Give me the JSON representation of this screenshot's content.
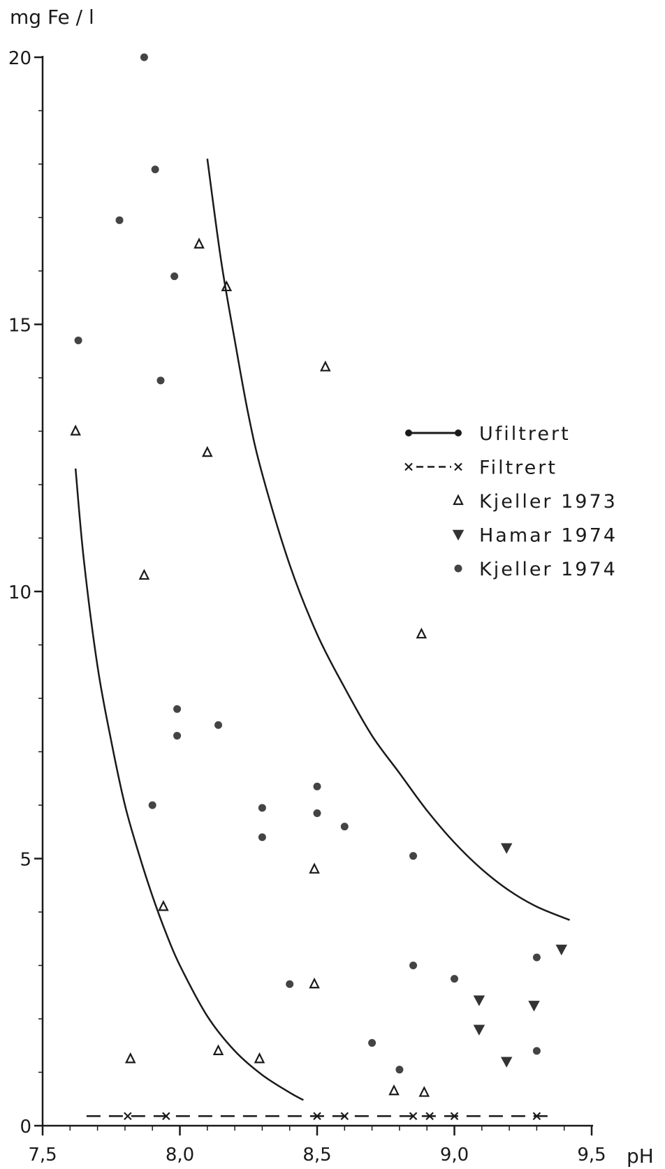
{
  "chart_data": {
    "type": "scatter",
    "title": "",
    "xlabel": "pH",
    "ylabel": "mg Fe / l",
    "xlim": [
      7.5,
      9.5
    ],
    "ylim": [
      0,
      20
    ],
    "x_ticks": [
      "7,5",
      "8,0",
      "8,5",
      "9,0",
      "9,5"
    ],
    "y_ticks": [
      "0",
      "5",
      "10",
      "15",
      "20"
    ],
    "grid": false,
    "legend_position": "right-middle",
    "legend": [
      {
        "label": "Ufiltrert",
        "style": "solid-line-dots"
      },
      {
        "label": "Filtrert",
        "style": "dashed-line-x"
      },
      {
        "label": "Kjeller 1973",
        "marker": "triangle-open"
      },
      {
        "label": "Hamar 1974",
        "marker": "triangle-down-filled"
      },
      {
        "label": "Kjeller 1974",
        "marker": "circle-filled"
      }
    ],
    "series": [
      {
        "name": "Kjeller 1973",
        "marker": "triangle-open",
        "points": [
          [
            7.62,
            13.0
          ],
          [
            7.82,
            1.25
          ],
          [
            7.87,
            10.3
          ],
          [
            7.94,
            4.1
          ],
          [
            8.07,
            16.5
          ],
          [
            8.1,
            12.6
          ],
          [
            8.14,
            1.4
          ],
          [
            8.17,
            15.7
          ],
          [
            8.29,
            1.25
          ],
          [
            8.49,
            4.8
          ],
          [
            8.49,
            2.65
          ],
          [
            8.53,
            14.2
          ],
          [
            8.78,
            0.65
          ],
          [
            8.88,
            9.2
          ],
          [
            8.89,
            0.62
          ]
        ]
      },
      {
        "name": "Hamar 1974",
        "marker": "triangle-down-filled",
        "points": [
          [
            9.09,
            2.35
          ],
          [
            9.09,
            1.8
          ],
          [
            9.19,
            5.2
          ],
          [
            9.19,
            1.2
          ],
          [
            9.29,
            2.25
          ],
          [
            9.39,
            3.3
          ]
        ]
      },
      {
        "name": "Kjeller 1974",
        "marker": "circle-filled",
        "points": [
          [
            7.63,
            14.7
          ],
          [
            7.78,
            16.95
          ],
          [
            7.87,
            20.0
          ],
          [
            7.9,
            6.0
          ],
          [
            7.91,
            17.9
          ],
          [
            7.93,
            13.95
          ],
          [
            7.98,
            15.9
          ],
          [
            7.99,
            7.8
          ],
          [
            7.99,
            7.3
          ],
          [
            8.14,
            7.5
          ],
          [
            8.3,
            5.95
          ],
          [
            8.3,
            5.4
          ],
          [
            8.4,
            2.65
          ],
          [
            8.5,
            6.35
          ],
          [
            8.5,
            5.85
          ],
          [
            8.6,
            5.6
          ],
          [
            8.7,
            1.55
          ],
          [
            8.8,
            1.05
          ],
          [
            8.85,
            5.05
          ],
          [
            8.85,
            3.0
          ],
          [
            9.0,
            2.75
          ],
          [
            9.3,
            3.15
          ],
          [
            9.3,
            1.4
          ]
        ]
      },
      {
        "name": "Filtrert",
        "marker": "x",
        "points": [
          [
            7.81,
            0.18
          ],
          [
            7.95,
            0.18
          ],
          [
            8.5,
            0.18
          ],
          [
            8.6,
            0.18
          ],
          [
            8.85,
            0.18
          ],
          [
            8.91,
            0.18
          ],
          [
            9.0,
            0.18
          ],
          [
            9.3,
            0.18
          ]
        ]
      }
    ],
    "curves": [
      {
        "name": "lower envelope",
        "style": "solid",
        "points": [
          [
            7.62,
            12.3
          ],
          [
            7.65,
            10.6
          ],
          [
            7.7,
            8.6
          ],
          [
            7.75,
            7.2
          ],
          [
            7.8,
            6.0
          ],
          [
            7.85,
            5.1
          ],
          [
            7.9,
            4.3
          ],
          [
            7.95,
            3.6
          ],
          [
            8.0,
            3.0
          ],
          [
            8.1,
            2.05
          ],
          [
            8.2,
            1.4
          ],
          [
            8.3,
            0.95
          ],
          [
            8.4,
            0.62
          ],
          [
            8.45,
            0.48
          ]
        ]
      },
      {
        "name": "upper envelope",
        "style": "solid",
        "points": [
          [
            8.1,
            18.1
          ],
          [
            8.15,
            16.2
          ],
          [
            8.2,
            14.7
          ],
          [
            8.25,
            13.3
          ],
          [
            8.3,
            12.2
          ],
          [
            8.4,
            10.5
          ],
          [
            8.5,
            9.2
          ],
          [
            8.6,
            8.2
          ],
          [
            8.7,
            7.3
          ],
          [
            8.8,
            6.6
          ],
          [
            8.9,
            5.9
          ],
          [
            9.0,
            5.3
          ],
          [
            9.1,
            4.8
          ],
          [
            9.2,
            4.4
          ],
          [
            9.3,
            4.1
          ],
          [
            9.42,
            3.85
          ]
        ]
      },
      {
        "name": "Filtrert",
        "style": "dashed",
        "points": [
          [
            7.66,
            0.18
          ],
          [
            9.37,
            0.18
          ]
        ]
      }
    ]
  }
}
